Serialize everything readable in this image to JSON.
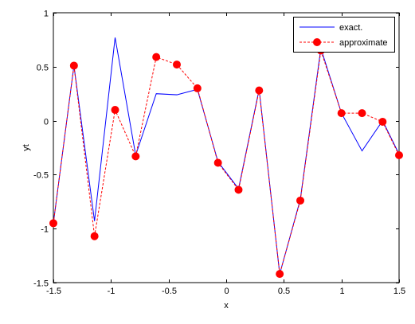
{
  "chart_data": {
    "type": "line",
    "xlabel": "x",
    "ylabel": "yt",
    "xlim": [
      -1.5,
      1.5
    ],
    "ylim": [
      -1.5,
      1
    ],
    "xticks": [
      -1.5,
      -1,
      -0.5,
      0,
      0.5,
      1,
      1.5
    ],
    "xtick_labels": [
      "-1.5",
      "-1",
      "-0.5",
      "0",
      "0.5",
      "1",
      "1.5"
    ],
    "yticks": [
      -1.5,
      -1,
      -0.5,
      0,
      0.5,
      1
    ],
    "ytick_labels": [
      "-1.5",
      "-1",
      "-0.5",
      "0",
      "0.5",
      "1"
    ],
    "grid": false,
    "legend_position": "top-right",
    "series": [
      {
        "name": "exact.",
        "style": "solid",
        "color": "#0000ff",
        "marker": "none",
        "x": [
          -1.5,
          -1.3214,
          -1.1429,
          -0.9643,
          -0.7857,
          -0.6071,
          -0.4286,
          -0.25,
          -0.0714,
          0.1071,
          0.2857,
          0.4643,
          0.6429,
          0.8214,
          1.0,
          1.1786,
          1.3571,
          1.5
        ],
        "y": [
          -0.95,
          0.51,
          -0.93,
          0.77,
          -0.32,
          0.25,
          0.24,
          0.29,
          -0.38,
          -0.63,
          0.29,
          -1.42,
          -0.73,
          0.67,
          0.07,
          -0.28,
          0.0,
          -0.31
        ]
      },
      {
        "name": "approximate",
        "style": "dashed",
        "color": "#ff0000",
        "marker": "circle",
        "x": [
          -1.5,
          -1.3214,
          -1.1429,
          -0.9643,
          -0.7857,
          -0.6071,
          -0.4286,
          -0.25,
          -0.0714,
          0.1071,
          0.2857,
          0.4643,
          0.6429,
          0.8214,
          1.0,
          1.1786,
          1.3571,
          1.5
        ],
        "y": [
          -0.95,
          0.51,
          -1.07,
          0.1,
          -0.33,
          0.59,
          0.52,
          0.3,
          -0.39,
          -0.64,
          0.28,
          -1.42,
          -0.74,
          0.65,
          0.07,
          0.07,
          -0.01,
          -0.32
        ]
      }
    ]
  }
}
